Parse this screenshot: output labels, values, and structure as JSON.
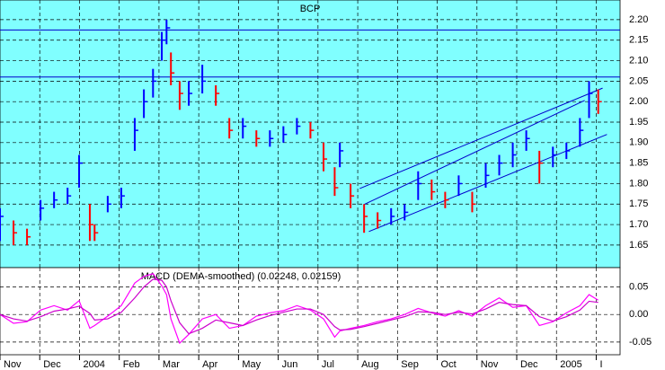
{
  "chart_data": [
    {
      "type": "ohlc",
      "title": "BCP",
      "x": [
        0,
        0.34,
        0.68,
        1.02,
        1.36,
        1.7,
        1.99,
        2.26,
        2.38,
        2.71,
        3.05,
        3.39,
        3.62,
        3.85,
        4.07,
        4.19,
        4.3,
        4.52,
        4.75,
        5.09,
        5.43,
        5.77,
        6.11,
        6.45,
        6.79,
        7.13,
        7.47,
        7.81,
        8.14,
        8.42,
        8.55,
        8.82,
        9.16,
        9.5,
        9.84,
        10.18,
        10.52,
        10.86,
        11.2,
        11.54,
        11.88,
        12.22,
        12.56,
        12.9,
        13.24,
        13.57,
        13.91,
        14.25,
        14.59,
        14.82,
        15.05
      ],
      "high": [
        1.74,
        1.71,
        1.69,
        1.76,
        1.78,
        1.79,
        1.87,
        1.75,
        1.7,
        1.77,
        1.79,
        1.96,
        2.03,
        2.08,
        2.17,
        2.2,
        2.12,
        2.05,
        2.05,
        2.09,
        2.04,
        1.96,
        1.96,
        1.93,
        1.93,
        1.94,
        1.96,
        1.95,
        1.9,
        1.84,
        1.9,
        1.8,
        1.75,
        1.73,
        1.74,
        1.75,
        1.83,
        1.81,
        1.78,
        1.82,
        1.78,
        1.85,
        1.87,
        1.9,
        1.93,
        1.88,
        1.89,
        1.9,
        1.96,
        2.05,
        2.03
      ],
      "low": [
        1.66,
        1.65,
        1.65,
        1.71,
        1.74,
        1.75,
        1.79,
        1.66,
        1.66,
        1.73,
        1.74,
        1.88,
        1.96,
        2.01,
        2.1,
        2.14,
        2.04,
        1.98,
        1.99,
        2.02,
        1.99,
        1.91,
        1.91,
        1.89,
        1.89,
        1.9,
        1.92,
        1.91,
        1.83,
        1.77,
        1.84,
        1.74,
        1.68,
        1.69,
        1.7,
        1.71,
        1.76,
        1.76,
        1.74,
        1.77,
        1.73,
        1.79,
        1.82,
        1.84,
        1.88,
        1.8,
        1.84,
        1.86,
        1.89,
        1.96,
        1.97
      ],
      "close": [
        1.72,
        1.68,
        1.67,
        1.74,
        1.76,
        1.77,
        1.85,
        1.7,
        1.68,
        1.75,
        1.77,
        1.93,
        2.0,
        2.05,
        2.15,
        2.18,
        2.07,
        2.02,
        2.02,
        2.05,
        2.02,
        1.93,
        1.94,
        1.91,
        1.91,
        1.92,
        1.94,
        1.93,
        1.86,
        1.79,
        1.88,
        1.77,
        1.72,
        1.71,
        1.72,
        1.73,
        1.8,
        1.78,
        1.76,
        1.8,
        1.75,
        1.82,
        1.85,
        1.87,
        1.91,
        1.85,
        1.87,
        1.88,
        1.93,
        2.02,
        2.0
      ],
      "up_color": "#0000ff",
      "down_color": "#ff0000",
      "hlines": [
        2.175,
        2.06
      ],
      "hline_color": "#0000cc",
      "trendlines": [
        {
          "x": [
            9.05,
            15.16
          ],
          "y": [
            1.788,
            2.033
          ]
        },
        {
          "x": [
            9.16,
            14.71
          ],
          "y": [
            1.749,
            2.003
          ]
        },
        {
          "x": [
            9.28,
            15.27
          ],
          "y": [
            1.683,
            1.92
          ]
        }
      ],
      "trend_color": "#0000cc",
      "xlim": [
        0,
        15.6
      ],
      "ylim": [
        1.595,
        2.248
      ],
      "yticks": [
        1.65,
        {
          "value": 1.7,
          "label": "1.70"
        },
        1.75,
        {
          "value": 1.8,
          "label": "1.80"
        },
        1.85,
        {
          "value": 1.9,
          "label": "1.90"
        },
        1.95,
        {
          "value": 2.0,
          "label": "2.00"
        },
        2.05,
        {
          "value": 2.1,
          "label": "2.10"
        },
        2.15,
        {
          "value": 2.2,
          "label": "2.20"
        }
      ],
      "grid": true,
      "background": "#80ffff"
    },
    {
      "type": "line",
      "title": "MACD (DEMA-smoothed) (0.02248, 0.02159)",
      "x": [
        0,
        0.34,
        0.68,
        1.02,
        1.36,
        1.7,
        1.99,
        2.26,
        2.38,
        2.71,
        3.05,
        3.39,
        3.62,
        3.85,
        4.07,
        4.19,
        4.3,
        4.52,
        4.75,
        5.09,
        5.43,
        5.77,
        6.11,
        6.45,
        6.79,
        7.13,
        7.47,
        7.81,
        8.14,
        8.42,
        8.55,
        8.82,
        9.16,
        9.5,
        9.84,
        10.18,
        10.52,
        10.86,
        11.2,
        11.54,
        11.88,
        12.22,
        12.56,
        12.9,
        13.24,
        13.57,
        13.91,
        14.25,
        14.59,
        14.82,
        15.05
      ],
      "series": [
        {
          "color": "#ff00ff",
          "values": [
            0,
            -0.016,
            -0.013,
            0.008,
            0.016,
            0.008,
            0.025,
            -0.025,
            -0.02,
            -0.003,
            0.016,
            0.057,
            0.069,
            0.074,
            0.052,
            0.036,
            -0.008,
            -0.052,
            -0.036,
            -0.008,
            0,
            -0.025,
            -0.02,
            -0.003,
            0.003,
            0.007,
            0.016,
            0.008,
            -0.008,
            -0.041,
            -0.03,
            -0.025,
            -0.02,
            -0.013,
            -0.008,
            0,
            0.011,
            0.003,
            -0.003,
            0.007,
            -0.003,
            0.016,
            0.03,
            0.013,
            0.016,
            -0.02,
            -0.013,
            0.003,
            0.016,
            0.036,
            0.026
          ]
        },
        {
          "color": "#cc00cc",
          "values": [
            0,
            -0.008,
            -0.012,
            -0.004,
            0.006,
            0.01,
            0.015,
            0.002,
            -0.01,
            -0.008,
            0.004,
            0.03,
            0.05,
            0.064,
            0.062,
            0.05,
            0.025,
            -0.015,
            -0.035,
            -0.025,
            -0.01,
            -0.015,
            -0.02,
            -0.01,
            -0.002,
            0.004,
            0.01,
            0.01,
            0,
            -0.022,
            -0.028,
            -0.027,
            -0.022,
            -0.016,
            -0.01,
            -0.004,
            0.005,
            0.004,
            0,
            0.004,
            0.001,
            0.01,
            0.022,
            0.018,
            0.016,
            -0.004,
            -0.012,
            -0.004,
            0.008,
            0.024,
            0.022
          ]
        }
      ],
      "xlim": [
        0,
        15.6
      ],
      "ylim": [
        -0.073,
        0.085
      ],
      "yticks": [
        0.05,
        {
          "value": 0,
          "label": "0.00"
        },
        -0.05
      ],
      "xticks": [
        {
          "value": 0,
          "label": "Nov"
        },
        {
          "value": 1,
          "label": "Dec"
        },
        {
          "value": 2,
          "label": "2004"
        },
        {
          "value": 3,
          "label": "Feb"
        },
        {
          "value": 4,
          "label": "Mar"
        },
        {
          "value": 5,
          "label": "Apr"
        },
        {
          "value": 6,
          "label": "May"
        },
        {
          "value": 7,
          "label": "Jun"
        },
        {
          "value": 8,
          "label": "Jul"
        },
        {
          "value": 9,
          "label": "Aug"
        },
        {
          "value": 10,
          "label": "Sep"
        },
        {
          "value": 11,
          "label": "Oct"
        },
        {
          "value": 12,
          "label": "Nov"
        },
        {
          "value": 13,
          "label": "Dec"
        },
        {
          "value": 14,
          "label": "2005"
        },
        {
          "value": 15,
          "label": "I"
        }
      ],
      "grid": true,
      "background": "#ffffff"
    }
  ]
}
